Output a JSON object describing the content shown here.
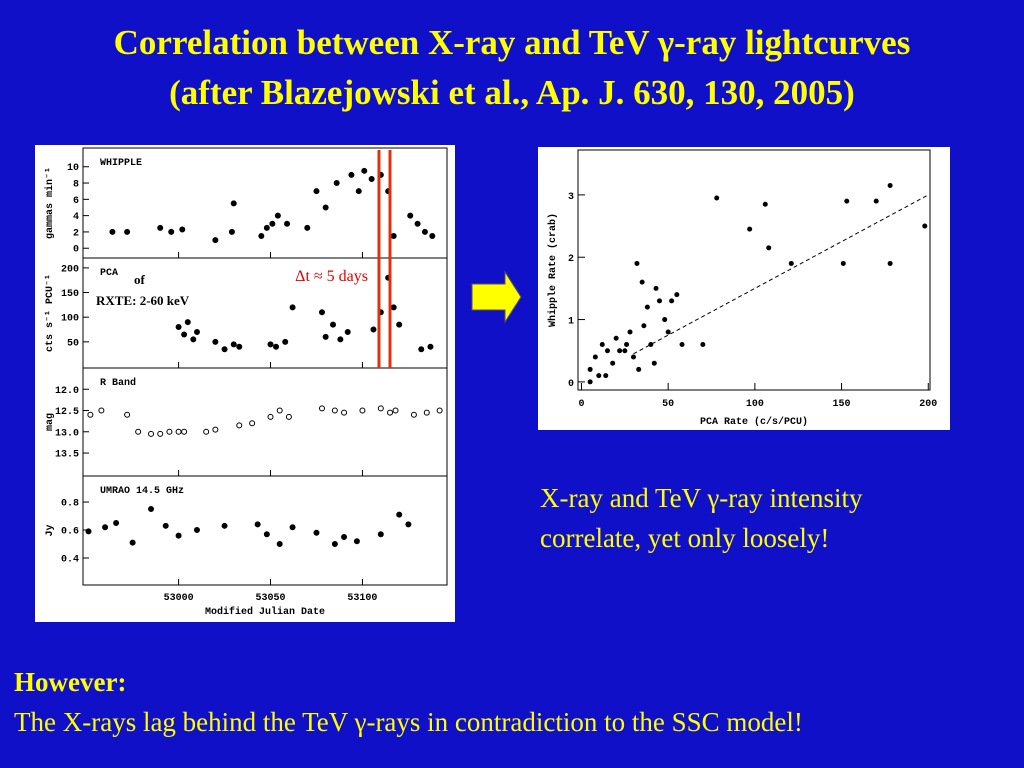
{
  "title": [
    "Correlation between X-ray and TeV γ-ray lightcurves",
    "(after Blazejowski et al., Ap. J. 630, 130, 2005)"
  ],
  "light_curves": {
    "x_label": "Modified Julian Date",
    "xlim": [
      52948,
      53146
    ],
    "xticks": [
      53000,
      53050,
      53100
    ],
    "annotation": "Δt ≈ 5 days",
    "lag_markers": [
      53109,
      53115
    ],
    "pca_note": [
      "of",
      "RXTE: 2-60 keV"
    ],
    "panels": [
      {
        "label": "WHIPPLE",
        "y_label": "gammas min⁻¹",
        "ylim": [
          -1.2,
          12.3
        ],
        "yticks": [
          0,
          2,
          4,
          6,
          8,
          10
        ],
        "x": [
          52964,
          52972,
          52990,
          52996,
          53002,
          53020,
          53029,
          53030,
          53045,
          53048,
          53051,
          53054,
          53059,
          53070,
          53075,
          53080,
          53086,
          53094,
          53098,
          53101,
          53105,
          53110,
          53114,
          53117,
          53126,
          53130,
          53134,
          53138
        ],
        "y": [
          2,
          2,
          2.5,
          2,
          2.3,
          1,
          2,
          5.5,
          1.5,
          2.5,
          3,
          4,
          3,
          2.5,
          7,
          5,
          8,
          9,
          7,
          9.5,
          8.5,
          9,
          7,
          1.5,
          4,
          3,
          2,
          1.5
        ]
      },
      {
        "label": "PCA",
        "y_label": "cts s⁻¹ PCU⁻¹",
        "ylim": [
          -3,
          220
        ],
        "yticks": [
          50,
          100,
          150,
          200
        ],
        "x": [
          53000,
          53003,
          53005,
          53008,
          53010,
          53020,
          53025,
          53030,
          53033,
          53050,
          53053,
          53058,
          53062,
          53078,
          53080,
          53084,
          53088,
          53092,
          53106,
          53110,
          53114,
          53117,
          53120,
          53132,
          53137
        ],
        "y": [
          80,
          65,
          90,
          55,
          70,
          50,
          35,
          45,
          40,
          45,
          40,
          50,
          120,
          110,
          60,
          85,
          55,
          70,
          75,
          110,
          180,
          120,
          85,
          35,
          40
        ]
      },
      {
        "label": "R Band",
        "y_label": "mag",
        "ylim": [
          14.04,
          11.5
        ],
        "yticks": [
          {
            "value": 12,
            "label": "12.0"
          },
          12.5,
          {
            "value": 13,
            "label": "13.0"
          },
          13.5
        ],
        "x": [
          52952,
          52958,
          52972,
          52978,
          52985,
          52990,
          52995,
          53000,
          53003,
          53015,
          53020,
          53033,
          53040,
          53050,
          53055,
          53060,
          53078,
          53085,
          53090,
          53100,
          53110,
          53115,
          53118,
          53128,
          53135,
          53142
        ],
        "y": [
          12.6,
          12.5,
          12.6,
          13,
          13.05,
          13.05,
          13,
          13,
          13,
          13,
          12.95,
          12.85,
          12.8,
          12.65,
          12.5,
          12.65,
          12.45,
          12.5,
          12.55,
          12.5,
          12.45,
          12.55,
          12.5,
          12.6,
          12.55,
          12.5
        ]
      },
      {
        "label": "UMRAO 14.5 GHz",
        "y_label": "Jy",
        "ylim": [
          0.207,
          0.986
        ],
        "yticks": [
          0.8,
          0.6,
          0.4
        ],
        "x": [
          52951,
          52960,
          52966,
          52975,
          52985,
          52993,
          53000,
          53010,
          53025,
          53043,
          53048,
          53055,
          53062,
          53075,
          53085,
          53090,
          53097,
          53110,
          53120,
          53125
        ],
        "y": [
          0.59,
          0.62,
          0.65,
          0.51,
          0.75,
          0.63,
          0.56,
          0.6,
          0.63,
          0.64,
          0.57,
          0.5,
          0.62,
          0.58,
          0.5,
          0.55,
          0.52,
          0.57,
          0.71,
          0.64
        ]
      }
    ]
  },
  "scatter": {
    "x_label": "PCA Rate (c/s/PCU)",
    "y_label": "Whipple Rate (crab)",
    "xlim": [
      -2,
      201
    ],
    "ylim": [
      -0.13,
      3.72
    ],
    "xticks": [
      0,
      50,
      100,
      150,
      200
    ],
    "yticks": [
      0,
      1,
      2,
      3
    ],
    "x": [
      78,
      97,
      106,
      108,
      121,
      151,
      153,
      170,
      178,
      178,
      198,
      70,
      32,
      35,
      38,
      43,
      45,
      48,
      50,
      52,
      55,
      58,
      5,
      8,
      10,
      12,
      15,
      18,
      20,
      22,
      25,
      28,
      30,
      33,
      36,
      40,
      42,
      5,
      14,
      26
    ],
    "y": [
      2.95,
      2.45,
      2.85,
      2.15,
      1.9,
      1.9,
      2.9,
      2.9,
      3.15,
      1.9,
      2.5,
      0.6,
      1.9,
      1.6,
      1.2,
      1.5,
      1.3,
      1,
      0.8,
      1.3,
      1.4,
      0.6,
      0.2,
      0.4,
      0.1,
      0.6,
      0.5,
      0.3,
      0.7,
      0.5,
      0.5,
      0.8,
      0.4,
      0.2,
      0.9,
      0.6,
      0.3,
      0,
      0.1,
      0.6
    ],
    "fit_line": {
      "x": [
        30,
        200
      ],
      "y": [
        0.45,
        3
      ]
    }
  },
  "caption": [
    "X-ray and TeV γ-ray intensity",
    "correlate, yet only loosely!"
  ],
  "conclusion": {
    "heading": "However:",
    "text": "The X-rays lag behind the TeV γ-rays in contradiction to the SSC model!"
  }
}
